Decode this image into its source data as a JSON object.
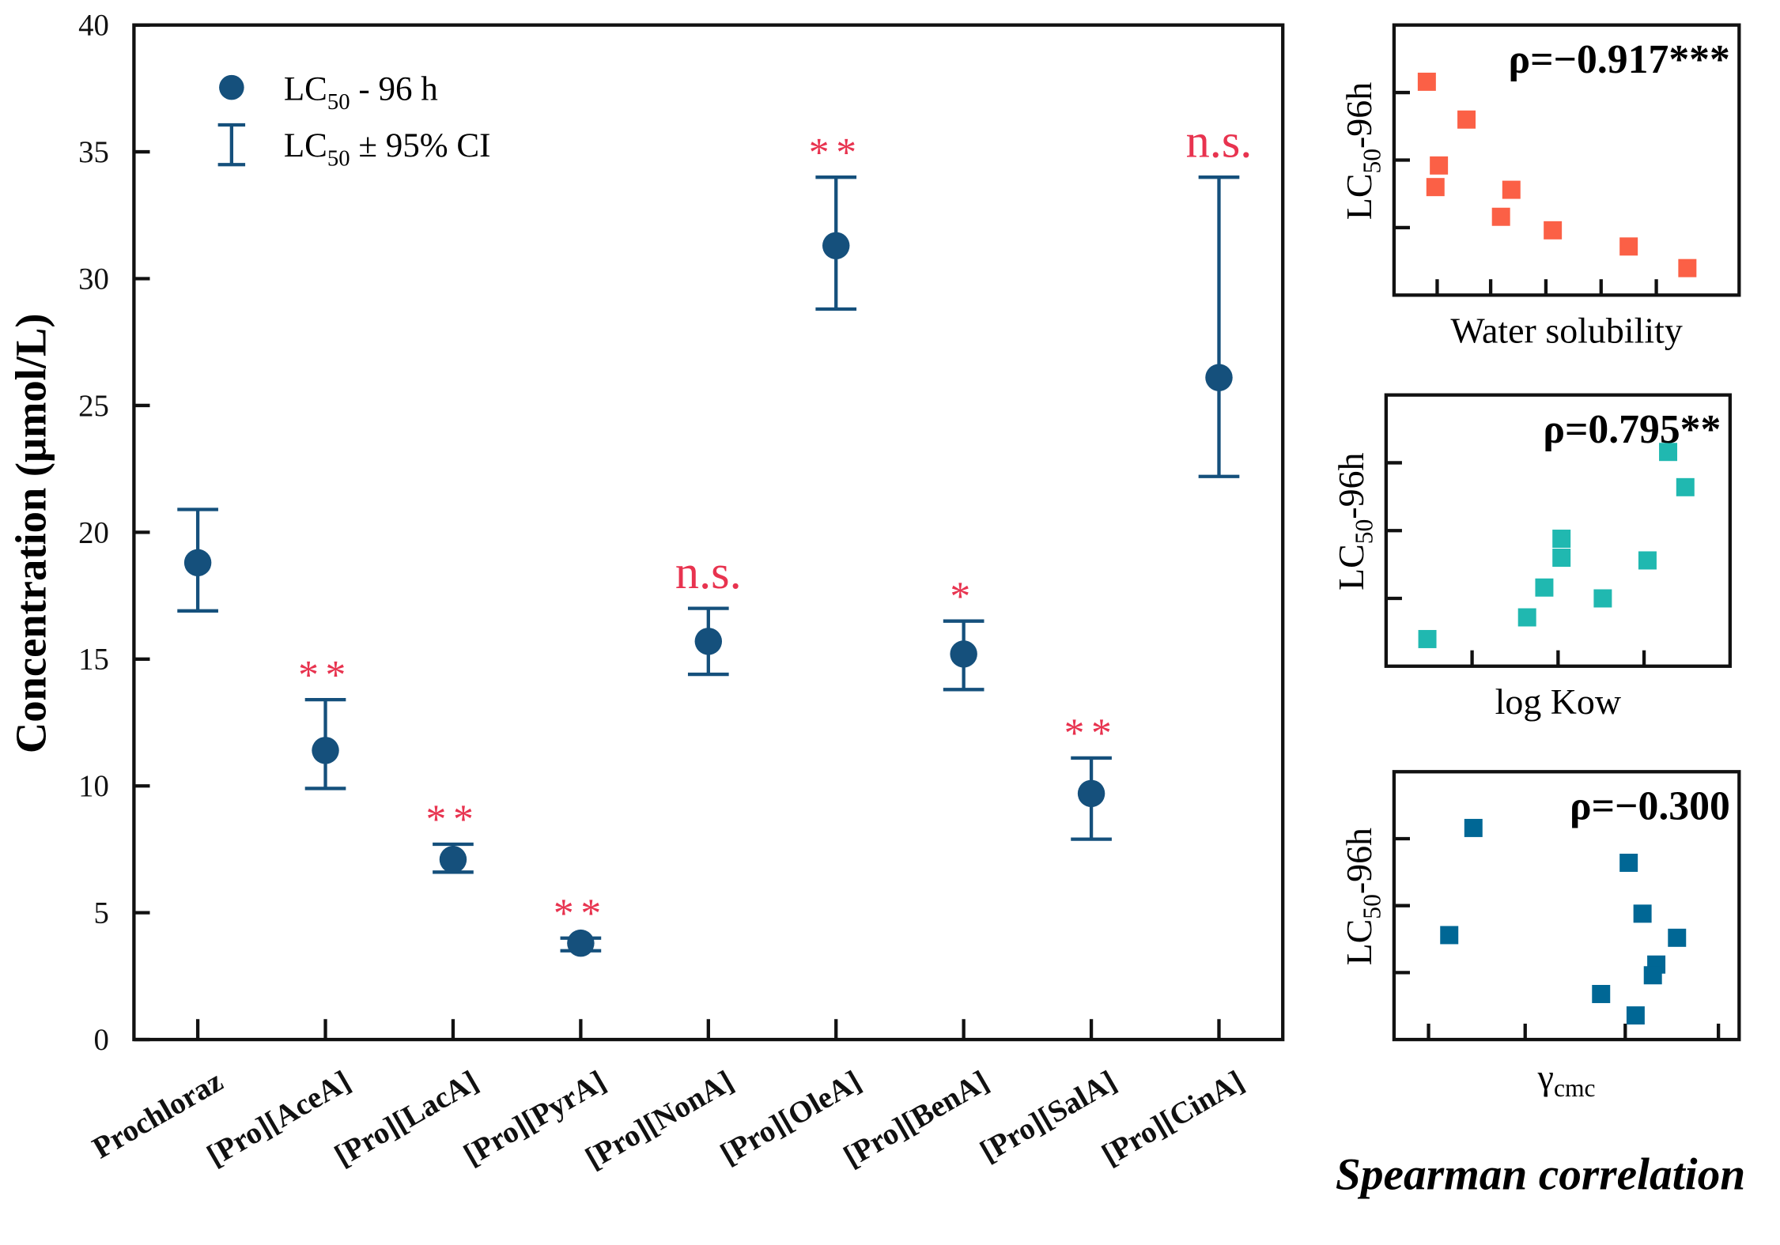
{
  "colors": {
    "main": "#15507c",
    "sig": "#e8334f",
    "ws": "#fb6046",
    "kow": "#20b8b0",
    "cmc": "#006795"
  },
  "chart_data": [
    {
      "type": "scatter",
      "title": "",
      "ylabel": "Concentration (μmol/L)",
      "xlabel": "",
      "ylim": [
        0,
        40
      ],
      "yticks": [
        "0",
        "5",
        "10",
        "15",
        "20",
        "25",
        "30",
        "35",
        "40"
      ],
      "categories": [
        "Prochloraz",
        "[Pro][AceA]",
        "[Pro][LacA]",
        "[Pro][PyrA]",
        "[Pro][NonA]",
        "[Pro][OleA]",
        "[Pro][BenA]",
        "[Pro][SalA]",
        "[Pro][CinA]"
      ],
      "series": [
        {
          "name": "LC50 - 96 h",
          "values": [
            18.8,
            11.4,
            7.1,
            3.8,
            15.7,
            31.3,
            15.2,
            9.7,
            26.1
          ]
        }
      ],
      "ci_lower": [
        16.9,
        9.9,
        6.6,
        3.5,
        14.4,
        28.8,
        13.8,
        7.9,
        22.2
      ],
      "ci_upper": [
        20.9,
        13.4,
        7.7,
        4.0,
        17.0,
        34.0,
        16.5,
        11.1,
        34.0
      ],
      "annotations": [
        "",
        "**",
        "**",
        "**",
        "n.s.",
        "**",
        "*",
        "**",
        "n.s."
      ],
      "legend": {
        "placement": "top-left",
        "entries": [
          {
            "main": "LC",
            "sub": "50",
            "rest": " - 96 h"
          },
          {
            "main": "LC",
            "sub": "50",
            "rest": " ± 95% CI"
          }
        ]
      },
      "grid": false
    },
    {
      "type": "scatter",
      "xlabel": "Water solubility",
      "ylabel_main": "LC",
      "ylabel_sub": "50",
      "ylabel_rest": "-96h",
      "annotation": "ρ=−0.917***",
      "xlim": [
        0,
        10
      ],
      "ylim": [
        0,
        10
      ],
      "x": [
        0.95,
        2.1,
        1.3,
        1.2,
        3.4,
        3.1,
        4.6,
        6.8,
        8.5
      ],
      "y": [
        7.9,
        6.5,
        4.8,
        4.0,
        3.9,
        2.9,
        2.4,
        1.8,
        1.0
      ],
      "xticks": [
        1.25,
        2.8,
        4.4,
        6.0,
        7.6
      ],
      "yticks": [
        2.5,
        5.0,
        7.5
      ]
    },
    {
      "type": "scatter",
      "xlabel": "log Kow",
      "ylabel_main": "LC",
      "ylabel_sub": "50",
      "ylabel_rest": "-96h",
      "annotation": "ρ=0.795**",
      "xlim": [
        0,
        10
      ],
      "ylim": [
        0,
        10
      ],
      "x": [
        1.2,
        4.1,
        4.6,
        5.1,
        5.1,
        6.3,
        7.6,
        8.2,
        8.7
      ],
      "y": [
        1.0,
        1.8,
        2.9,
        4.7,
        4.0,
        2.5,
        3.9,
        7.9,
        6.6
      ],
      "xticks": [
        2.5,
        5.0,
        7.5
      ],
      "yticks": [
        2.5,
        5.0,
        7.5
      ]
    },
    {
      "type": "scatter",
      "xlabel_main": "γ",
      "xlabel_sub": "cmc",
      "ylabel_main": "LC",
      "ylabel_sub": "50",
      "ylabel_rest": "-96h",
      "annotation": "ρ=−0.300",
      "xlim": [
        0,
        10
      ],
      "ylim": [
        0,
        10
      ],
      "x": [
        2.3,
        1.6,
        6.8,
        7.2,
        8.2,
        7.6,
        7.5,
        6.0,
        7.0
      ],
      "y": [
        7.9,
        3.9,
        6.6,
        4.7,
        3.8,
        2.8,
        2.4,
        1.7,
        0.9
      ],
      "xticks": [
        1.0,
        3.8,
        6.7,
        9.4
      ],
      "yticks": [
        2.5,
        5.0,
        7.5
      ]
    }
  ],
  "footer": "Spearman correlation"
}
